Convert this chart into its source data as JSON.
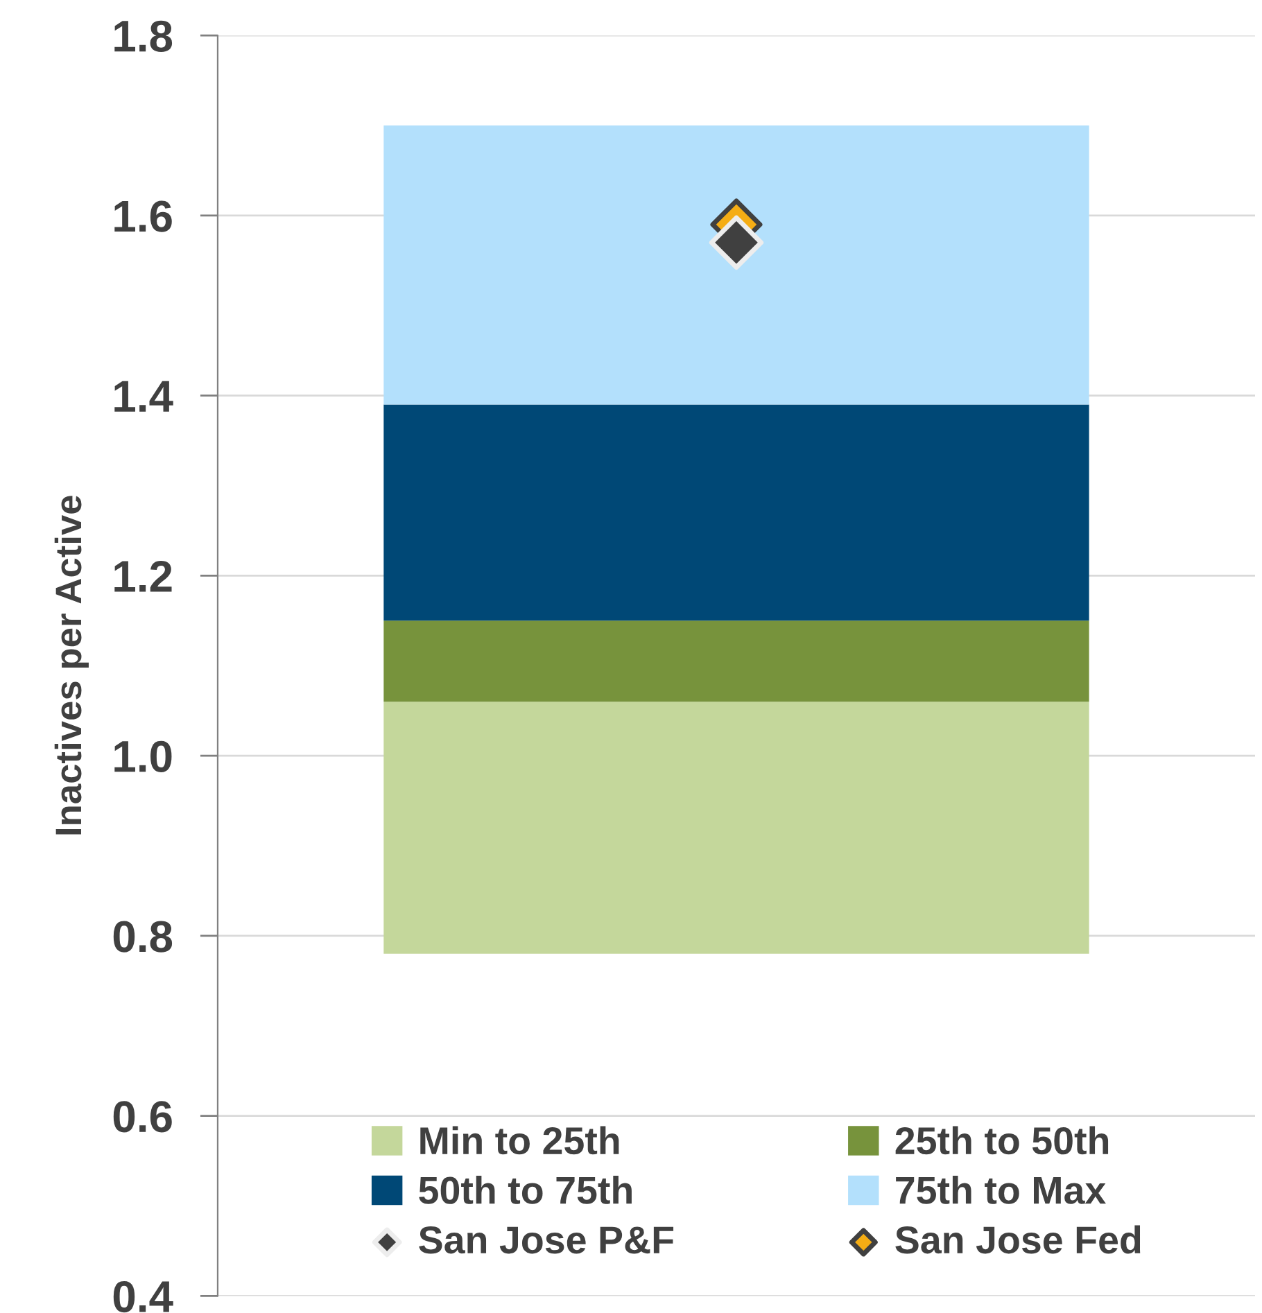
{
  "chart_data": {
    "type": "bar",
    "ylabel": "Inactives per Active",
    "categories": [
      null
    ],
    "series": [
      {
        "name": "Min to 25th",
        "color": "#c4d79b",
        "base": [
          0.78
        ],
        "values": [
          0.28
        ]
      },
      {
        "name": "25th to 50th",
        "color": "#77933c",
        "base": [
          1.06
        ],
        "values": [
          0.09
        ]
      },
      {
        "name": "50th to 75th",
        "color": "#004876",
        "base": [
          1.15
        ],
        "values": [
          0.24
        ]
      },
      {
        "name": "75th to Max",
        "color": "#b3e0fc",
        "base": [
          1.39
        ],
        "values": [
          0.31
        ]
      },
      {
        "name": "San Jose P&F",
        "type": "scatter",
        "color": "#404040",
        "values": [
          1.57
        ]
      },
      {
        "name": "San Jose Fed",
        "type": "scatter",
        "color": "#f5ad14",
        "values": [
          1.59
        ]
      }
    ],
    "ylim": [
      0.4,
      1.8
    ],
    "yticks": [
      {
        "value": 0.4,
        "label": "0.4"
      },
      {
        "value": 0.6,
        "label": "0.6"
      },
      {
        "value": 0.8,
        "label": "0.8"
      },
      {
        "value": 1.0,
        "label": "1.0"
      },
      {
        "value": 1.2,
        "label": "1.2"
      },
      {
        "value": 1.4,
        "label": "1.4"
      },
      {
        "value": 1.6,
        "label": "1.6"
      },
      {
        "value": 1.8,
        "label": "1.8"
      }
    ],
    "grid": "y",
    "legend": "bottom",
    "marker": "diamond",
    "tick_labels": "y"
  }
}
